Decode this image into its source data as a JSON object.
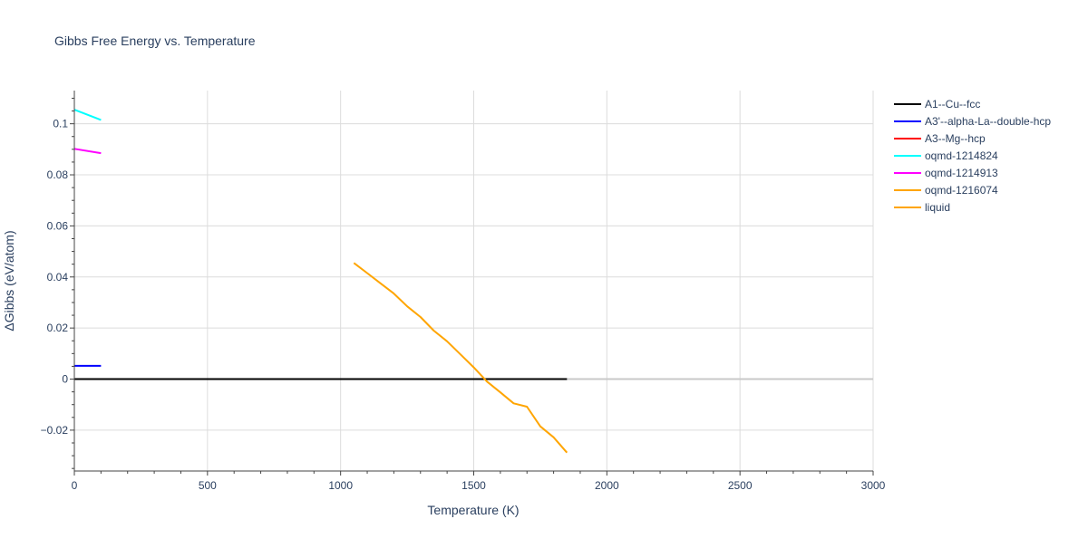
{
  "chart_data": {
    "type": "line",
    "title": "Gibbs Free Energy vs. Temperature",
    "xlabel": "Temperature (K)",
    "ylabel": "ΔGibbs (eV/atom)",
    "xlim": [
      0,
      3000
    ],
    "ylim": [
      -0.036,
      0.113
    ],
    "x_ticks": [
      0,
      500,
      1000,
      1500,
      2000,
      2500,
      3000
    ],
    "x_tick_labels": [
      "0",
      "500",
      "1000",
      "1500",
      "2000",
      "2500",
      "3000"
    ],
    "y_ticks": [
      -0.02,
      0,
      0.02,
      0.04,
      0.06,
      0.08,
      0.1
    ],
    "y_tick_labels": [
      "−0.02",
      "0",
      "0.02",
      "0.04",
      "0.06",
      "0.08",
      "0.1"
    ],
    "grid": true,
    "legend_position": "right",
    "series": [
      {
        "name": "A1--Cu--fcc",
        "color": "#000000",
        "x": [
          0,
          1850
        ],
        "y": [
          0,
          0
        ]
      },
      {
        "name": "A3'--alpha-La--double-hcp",
        "color": "#0000ff",
        "x": [
          0,
          100
        ],
        "y": [
          0.0052,
          0.0052
        ]
      },
      {
        "name": "A3--Mg--hcp",
        "color": "#ff0000",
        "x": [],
        "y": []
      },
      {
        "name": "oqmd-1214824",
        "color": "#00ffff",
        "x": [
          0,
          100
        ],
        "y": [
          0.1055,
          0.1015
        ]
      },
      {
        "name": "oqmd-1214913",
        "color": "#ff00ff",
        "x": [
          0,
          100
        ],
        "y": [
          0.0902,
          0.0885
        ]
      },
      {
        "name": "oqmd-1216074",
        "color": "#ffa500",
        "x": [],
        "y": []
      },
      {
        "name": "liquid",
        "color": "#ffa500",
        "x": [
          1050,
          1100,
          1150,
          1200,
          1250,
          1300,
          1350,
          1400,
          1450,
          1500,
          1550,
          1600,
          1650,
          1700,
          1750,
          1800,
          1850
        ],
        "y": [
          0.0455,
          0.0415,
          0.0375,
          0.0335,
          0.0285,
          0.0243,
          0.019,
          0.0148,
          0.0097,
          0.0046,
          -0.001,
          -0.0052,
          -0.0095,
          -0.0108,
          -0.0185,
          -0.0228,
          -0.0288
        ]
      }
    ]
  }
}
